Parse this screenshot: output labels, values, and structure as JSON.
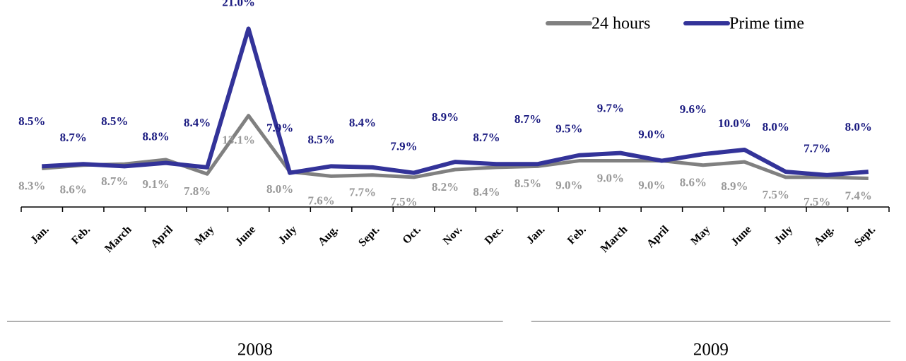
{
  "chart_data": {
    "type": "line",
    "categories": [
      "Jan.",
      "Feb.",
      "March",
      "April",
      "May",
      "June",
      "July",
      "Aug.",
      "Sept.",
      "Oct.",
      "Nov.",
      "Dec.",
      "Jan.",
      "Feb.",
      "March",
      "April",
      "May",
      "June",
      "July",
      "Aug.",
      "Sept."
    ],
    "groups": [
      {
        "label": "2008",
        "count": 12
      },
      {
        "label": "2009",
        "count": 9
      }
    ],
    "series": [
      {
        "name": "24 hours",
        "color": "#808080",
        "label_color": "#999999",
        "values": [
          8.3,
          8.6,
          8.7,
          9.1,
          7.8,
          13.1,
          8.0,
          7.6,
          7.7,
          7.5,
          8.2,
          8.4,
          8.5,
          9.0,
          9.0,
          9.0,
          8.6,
          8.9,
          7.5,
          7.5,
          7.4
        ],
        "value_labels": [
          "8.3%",
          "8.6%",
          "8.7%",
          "9.1%",
          "7.8%",
          "13.1%",
          "8.0%",
          "7.6%",
          "7.7%",
          "7.5%",
          "8.2%",
          "8.4%",
          "8.5%",
          "9.0%",
          "9.0%",
          "9.0%",
          "8.6%",
          "8.9%",
          "7.5%",
          "7.5%",
          "7.4%"
        ]
      },
      {
        "name": "Prime time",
        "color": "#333399",
        "label_color": "#1a1a80",
        "values": [
          8.5,
          8.7,
          8.5,
          8.8,
          8.4,
          21.0,
          7.9,
          8.5,
          8.4,
          7.9,
          8.9,
          8.7,
          8.7,
          9.5,
          9.7,
          9.0,
          9.6,
          10.0,
          8.0,
          7.7,
          8.0
        ],
        "value_labels": [
          "8.5%",
          "8.7%",
          "8.5%",
          "8.8%",
          "8.4%",
          "21.0%",
          "7.9%",
          "8.5%",
          "8.4%",
          "7.9%",
          "8.9%",
          "8.7%",
          "8.7%",
          "9.5%",
          "9.7%",
          "9.0%",
          "9.6%",
          "10.0%",
          "8.0%",
          "7.7%",
          "8.0%"
        ]
      }
    ],
    "ylim": [
      4.8,
      23.6
    ],
    "legend": "top-right"
  }
}
